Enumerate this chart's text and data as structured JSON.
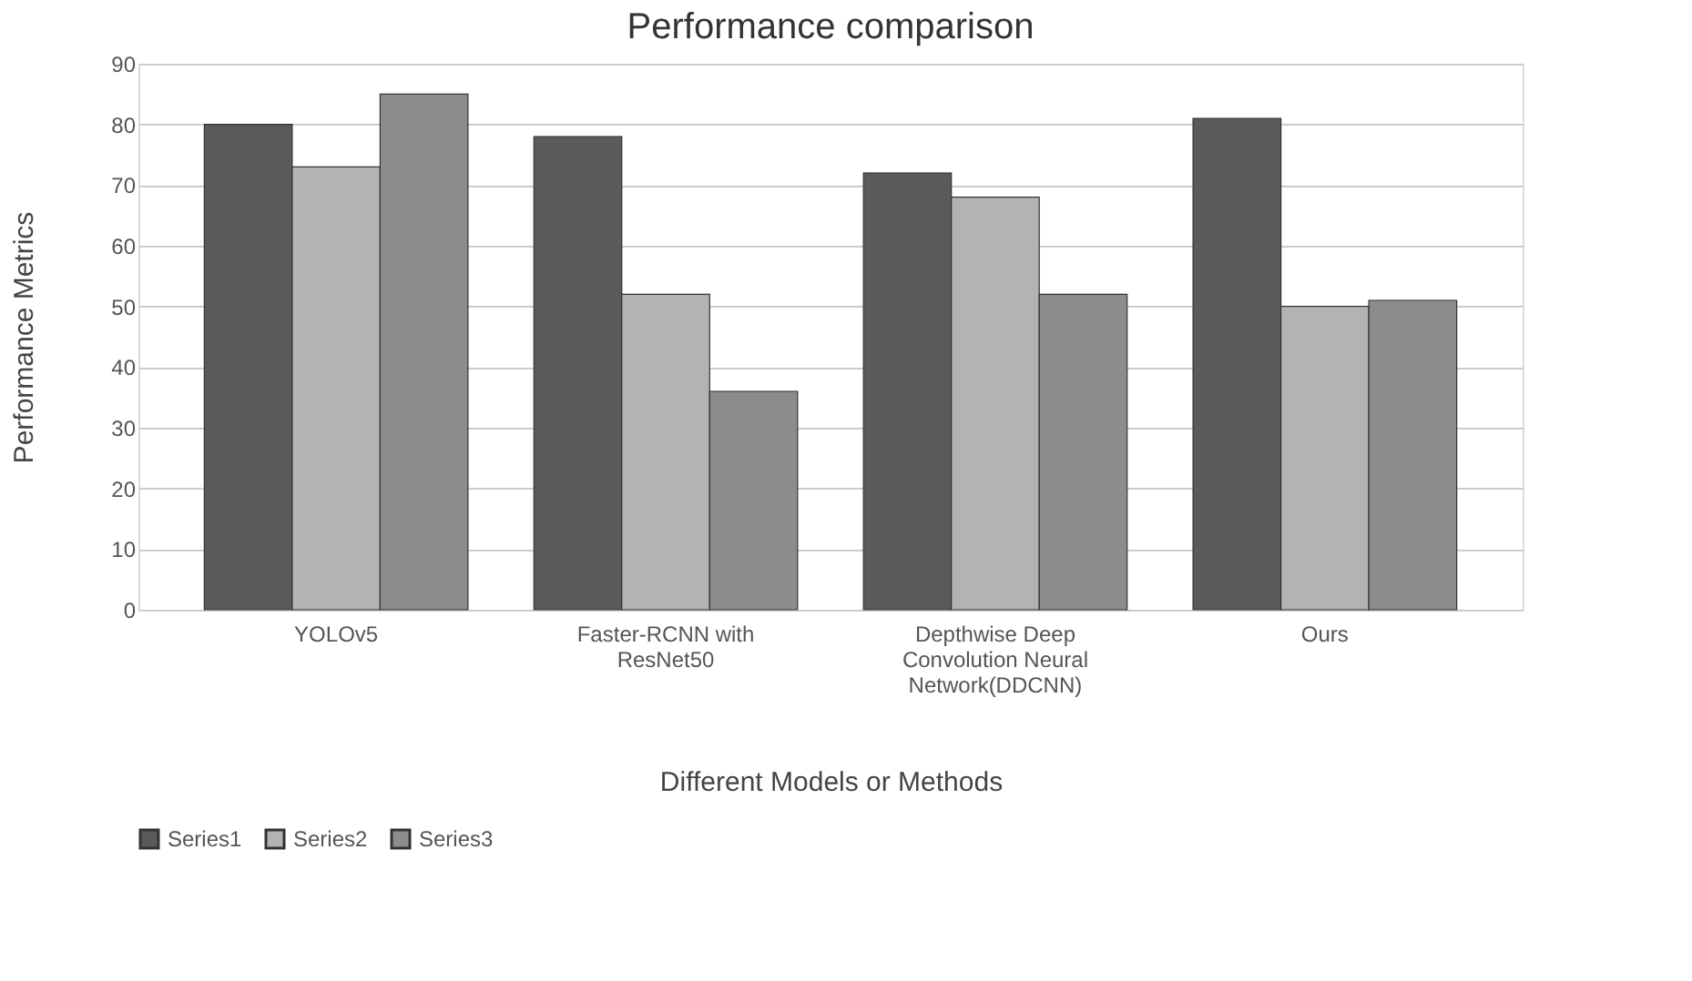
{
  "chart_data": {
    "type": "bar",
    "title": "Performance comparison",
    "xlabel": "Different Models or Methods",
    "ylabel": "Performance Metrics",
    "categories": [
      "YOLOv5",
      "Faster-RCNN with ResNet50",
      "Depthwise Deep Convolution Neural Network(DDCNN)",
      "Ours"
    ],
    "series": [
      {
        "name": "Series1",
        "color": "#5a5a5a",
        "values": [
          80,
          78,
          72,
          81
        ]
      },
      {
        "name": "Series2",
        "color": "#b3b3b3",
        "values": [
          73,
          52,
          68,
          50
        ]
      },
      {
        "name": "Series3",
        "color": "#8c8c8c",
        "values": [
          85,
          36,
          52,
          51
        ]
      }
    ],
    "ylim": [
      0,
      90
    ],
    "yticks": [
      0,
      10,
      20,
      30,
      40,
      50,
      60,
      70,
      80,
      90
    ],
    "grid": "y",
    "legend": "bottom"
  }
}
